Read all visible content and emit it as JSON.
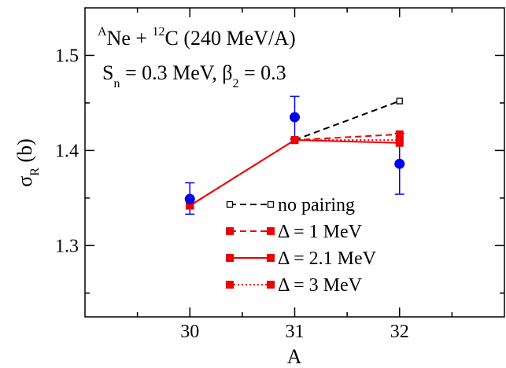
{
  "chart_data": {
    "type": "line",
    "xlabel": "A",
    "ylabel_main": "σ",
    "ylabel_sub": "R",
    "ylabel_unit": " (b)",
    "xlim": [
      29.0,
      33.0
    ],
    "ylim": [
      1.225,
      1.55
    ],
    "x_ticks": [
      30,
      31,
      32
    ],
    "x_tick_labels": [
      "30",
      "31",
      "32"
    ],
    "y_ticks": [
      1.3,
      1.4,
      1.5
    ],
    "y_tick_labels": [
      "1.3",
      "1.4",
      "1.5"
    ],
    "annotation": {
      "line1": {
        "sup_a": "A",
        "text_a": "Ne + ",
        "sup_b": "12",
        "text_b": "C   (240 MeV/A)"
      },
      "line2": {
        "s": "S",
        "s_sub": "n",
        "s_val": " = 0.3 MeV,  ",
        "beta": "β",
        "beta_sub": "2",
        "beta_val": " = 0.3"
      }
    },
    "experimental": {
      "color": "#0000ee",
      "points": [
        {
          "x": 30,
          "y": 1.349,
          "err_low": 1.333,
          "err_high": 1.366
        },
        {
          "x": 31,
          "y": 1.435,
          "err_low": 1.412,
          "err_high": 1.457
        },
        {
          "x": 32,
          "y": 1.386,
          "err_low": 1.354,
          "err_high": 1.418
        }
      ]
    },
    "series": [
      {
        "name": "no pairing",
        "color": "#000000",
        "dash": "8,5",
        "marker": "open-square",
        "x": [
          31,
          32
        ],
        "y": [
          1.411,
          1.452
        ]
      },
      {
        "name": "Δ = 1 MeV",
        "color": "#ee0000",
        "dash": "8,5",
        "marker": "filled-square",
        "x": [
          30,
          31,
          32
        ],
        "y": [
          1.342,
          1.411,
          1.417
        ]
      },
      {
        "name": "Δ = 2.1 MeV",
        "color": "#ee0000",
        "dash": "",
        "marker": "filled-square",
        "x": [
          30,
          31,
          32
        ],
        "y": [
          1.342,
          1.411,
          1.408
        ]
      },
      {
        "name": "Δ = 3 MeV",
        "color": "#ee0000",
        "dash": "2,3",
        "marker": "filled-square",
        "x": [
          30,
          31,
          32
        ],
        "y": [
          1.342,
          1.411,
          1.411
        ]
      }
    ],
    "legend_position": "lower-right",
    "grid": false
  }
}
